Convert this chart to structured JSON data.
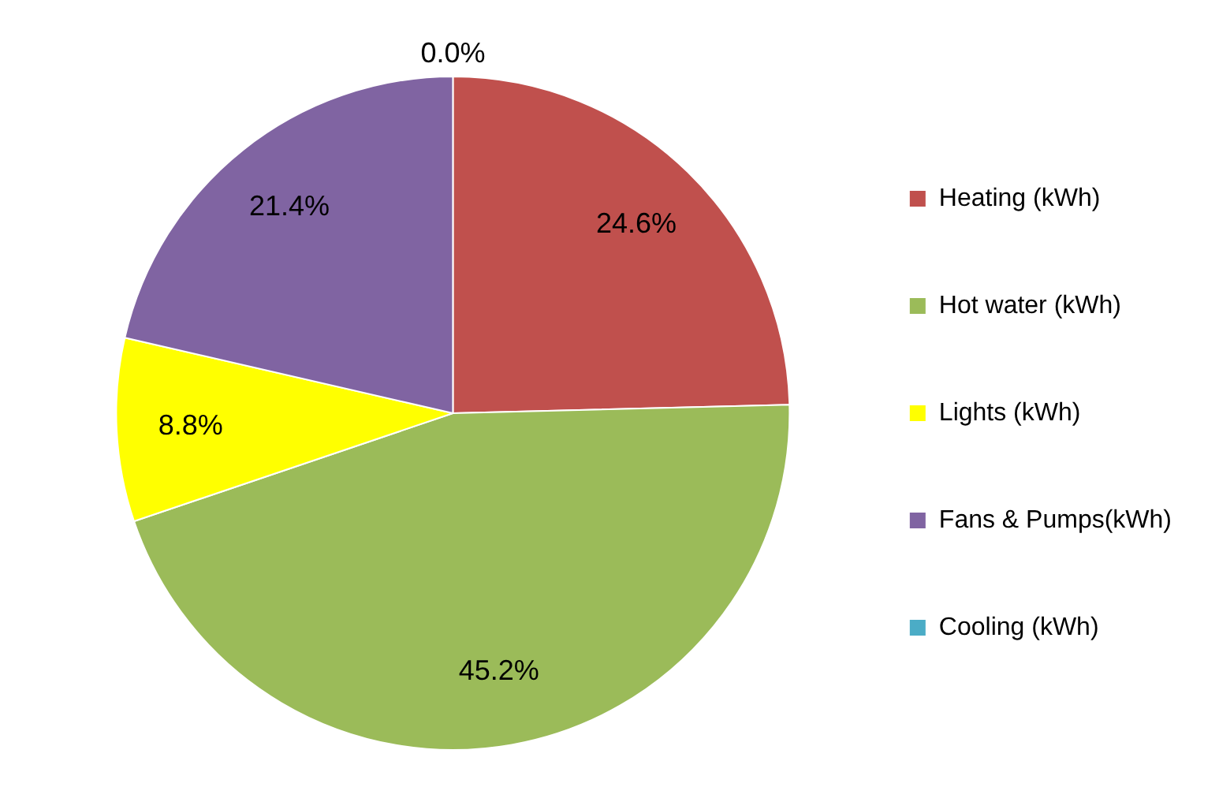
{
  "chart_data": {
    "type": "pie",
    "categories": [
      "Heating (kWh)",
      "Hot water (kWh)",
      "Lights (kWh)",
      "Fans & Pumps(kWh)",
      "Cooling (kWh)"
    ],
    "values": [
      24.6,
      45.2,
      8.8,
      21.4,
      0.0
    ],
    "colors": [
      "#c0504d",
      "#9bbb59",
      "#ffff00",
      "#8064a2",
      "#4bacc6"
    ],
    "value_labels": [
      "24.6%",
      "45.2%",
      "8.8%",
      "21.4%",
      "0.0%"
    ],
    "legend": "right"
  }
}
